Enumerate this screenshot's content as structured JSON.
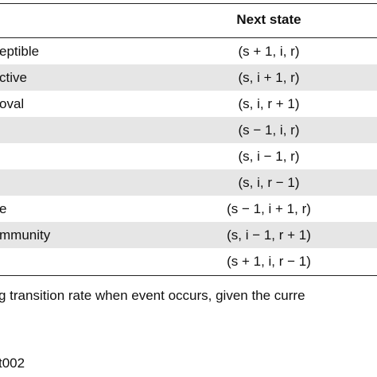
{
  "table": {
    "header": [
      null,
      "Next state"
    ],
    "rows": [
      [
        "eptible",
        "(s + 1, i, r)"
      ],
      [
        "ctive",
        "(s, i + 1, r)"
      ],
      [
        "oval",
        "(s, i, r + 1)"
      ],
      [
        null,
        "(s − 1, i, r)"
      ],
      [
        null,
        "(s, i − 1, r)"
      ],
      [
        null,
        "(s, i, r − 1)"
      ],
      [
        "e",
        "(s − 1, i + 1, r)"
      ],
      [
        "mmunity",
        "(s, i − 1, r + 1)"
      ],
      [
        null,
        "(s + 1, i, r − 1)"
      ]
    ]
  },
  "footnote": "g transition rate when event occurs, given the curre",
  "table_id": "t002"
}
